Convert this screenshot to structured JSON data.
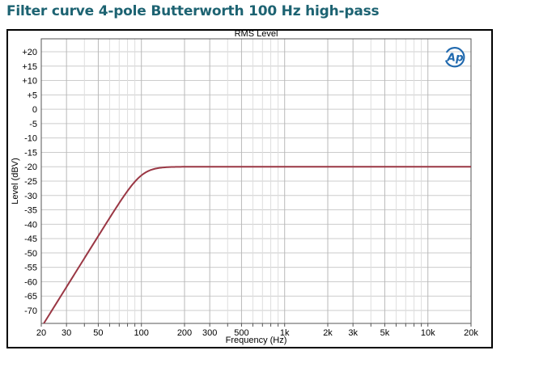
{
  "page": {
    "title": "Filter curve 4-pole Butterworth 100 Hz high-pass",
    "title_color": "#1d6372"
  },
  "chart": {
    "title": "RMS Level",
    "xlabel": "Frequency (Hz)",
    "ylabel": "Level (dBV)",
    "logo_text": "Ap",
    "logo_color": "#2069ae"
  },
  "chart_data": {
    "type": "line",
    "title": "RMS Level",
    "xlabel": "Frequency (Hz)",
    "ylabel": "Level (dBV)",
    "x_scale": "log",
    "x_range": [
      20,
      20000
    ],
    "y_range": [
      -74.5,
      24.5
    ],
    "grid_on": true,
    "colors": {
      "h_grid": "#cccccc",
      "v_grid_major": "#b9b9b9",
      "v_grid_minor": "#dedede",
      "plot_border": "#555555",
      "line": "#9a3744"
    },
    "y_ticks": [
      {
        "value": 20,
        "label": "+20"
      },
      {
        "value": 15,
        "label": "+15"
      },
      {
        "value": 10,
        "label": "+10"
      },
      {
        "value": 5,
        "label": "+5"
      },
      {
        "value": 0,
        "label": "0"
      },
      {
        "value": -5,
        "label": "-5"
      },
      {
        "value": -10,
        "label": "-10"
      },
      {
        "value": -15,
        "label": "-15"
      },
      {
        "value": -20,
        "label": "-20"
      },
      {
        "value": -25,
        "label": "-25"
      },
      {
        "value": -30,
        "label": "-30"
      },
      {
        "value": -35,
        "label": "-35"
      },
      {
        "value": -40,
        "label": "-40"
      },
      {
        "value": -45,
        "label": "-45"
      },
      {
        "value": -50,
        "label": "-50"
      },
      {
        "value": -55,
        "label": "-55"
      },
      {
        "value": -60,
        "label": "-60"
      },
      {
        "value": -65,
        "label": "-65"
      },
      {
        "value": -70,
        "label": "-70"
      }
    ],
    "x_ticks": [
      {
        "value": 20,
        "label": "20"
      },
      {
        "value": 30,
        "label": "30"
      },
      {
        "value": 50,
        "label": "50"
      },
      {
        "value": 100,
        "label": "100"
      },
      {
        "value": 200,
        "label": "200"
      },
      {
        "value": 300,
        "label": "300"
      },
      {
        "value": 500,
        "label": "500"
      },
      {
        "value": 1000,
        "label": "1k"
      },
      {
        "value": 2000,
        "label": "2k"
      },
      {
        "value": 3000,
        "label": "3k"
      },
      {
        "value": 5000,
        "label": "5k"
      },
      {
        "value": 10000,
        "label": "10k"
      },
      {
        "value": 20000,
        "label": "20k"
      }
    ],
    "x_grid": [
      20,
      30,
      40,
      50,
      60,
      70,
      80,
      90,
      100,
      200,
      300,
      400,
      500,
      600,
      700,
      800,
      900,
      1000,
      2000,
      3000,
      4000,
      5000,
      6000,
      7000,
      8000,
      9000,
      10000,
      20000
    ],
    "x_grid_major": [
      20,
      30,
      50,
      100,
      200,
      300,
      500,
      1000,
      2000,
      3000,
      5000,
      10000,
      20000
    ],
    "series": [
      {
        "name": "RMS Level",
        "filter": {
          "type": "butterworth-highpass",
          "poles": 4,
          "fc_hz": 100,
          "passband_dbv": -20
        },
        "points": [
          [
            20,
            -75.9
          ],
          [
            25,
            -68.2
          ],
          [
            30,
            -61.8
          ],
          [
            40,
            -51.8
          ],
          [
            50,
            -44.1
          ],
          [
            60,
            -37.8
          ],
          [
            70,
            -32.6
          ],
          [
            80,
            -28.4
          ],
          [
            90,
            -25.2
          ],
          [
            100,
            -23.0
          ],
          [
            120,
            -20.9
          ],
          [
            150,
            -20.2
          ],
          [
            200,
            -20.0
          ],
          [
            300,
            -20.0
          ],
          [
            500,
            -20.0
          ],
          [
            1000,
            -20.0
          ],
          [
            2000,
            -20.0
          ],
          [
            3000,
            -20.0
          ],
          [
            5000,
            -20.0
          ],
          [
            10000,
            -20.0
          ],
          [
            20000,
            -20.0
          ]
        ]
      }
    ]
  }
}
